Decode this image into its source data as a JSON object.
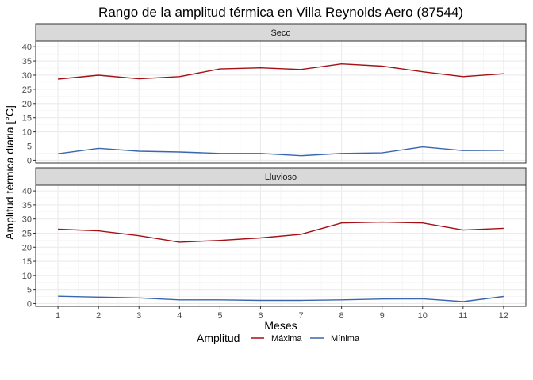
{
  "chart_data": {
    "type": "line",
    "title": "Rango de la amplitud térmica en Villa Reynolds Aero (87544)",
    "xlabel": "Meses",
    "ylabel": "Amplitud térmica diaria [°C]",
    "x": [
      1,
      2,
      3,
      4,
      5,
      6,
      7,
      8,
      9,
      10,
      11,
      12
    ],
    "x_ticks": [
      "1",
      "2",
      "3",
      "4",
      "5",
      "6",
      "7",
      "8",
      "9",
      "10",
      "11",
      "12"
    ],
    "y_ticks": [
      "0",
      "5",
      "10",
      "15",
      "20",
      "25",
      "30",
      "35",
      "40"
    ],
    "ylim": [
      -1,
      42
    ],
    "legend": {
      "title": "Amplitud",
      "position": "bottom",
      "entries": [
        "Máxima",
        "Mínima"
      ]
    },
    "colors": {
      "Máxima": "#A50F15",
      "Mínima": "#3A66AE",
      "strip_bg": "#D9D9D9",
      "panel_border": "#333333",
      "grid": "#EBEBEB"
    },
    "panels": [
      {
        "label": "Seco",
        "series": [
          {
            "name": "Máxima",
            "values": [
              28.6,
              30.0,
              28.7,
              29.5,
              32.2,
              32.6,
              32.0,
              34.0,
              33.2,
              31.2,
              29.5,
              30.5
            ]
          },
          {
            "name": "Mínima",
            "values": [
              2.3,
              4.2,
              3.2,
              2.9,
              2.4,
              2.4,
              1.6,
              2.4,
              2.6,
              4.7,
              3.4,
              3.5
            ]
          }
        ]
      },
      {
        "label": "Lluvioso",
        "series": [
          {
            "name": "Máxima",
            "values": [
              26.4,
              25.8,
              24.1,
              21.8,
              22.4,
              23.3,
              24.6,
              28.6,
              28.9,
              28.6,
              26.1,
              26.7
            ]
          },
          {
            "name": "Mínima",
            "values": [
              2.6,
              2.3,
              2.0,
              1.3,
              1.3,
              1.1,
              1.1,
              1.3,
              1.6,
              1.7,
              0.7,
              2.5
            ]
          }
        ]
      }
    ]
  }
}
